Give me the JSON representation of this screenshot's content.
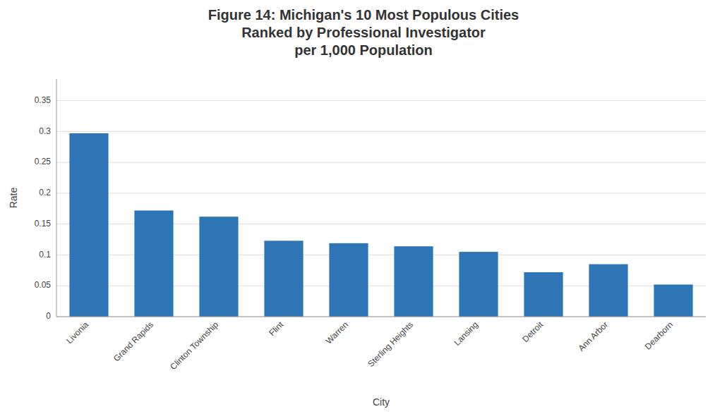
{
  "chart_data": {
    "type": "bar",
    "title": "Figure 14: Michigan's 10 Most Populous Cities\nRanked by Professional Investigator\nper 1,000 Population",
    "xlabel": "City",
    "ylabel": "Rate",
    "categories": [
      "Livonia",
      "Grand Rapids",
      "Clinton Township",
      "Flint",
      "Warren",
      "Sterling Heights",
      "Lansing",
      "Detroit",
      "Ann Arbor",
      "Dearborn"
    ],
    "values": [
      0.297,
      0.172,
      0.162,
      0.123,
      0.119,
      0.114,
      0.105,
      0.072,
      0.085,
      0.052
    ],
    "color": "#2E75B6",
    "ylim": [
      0,
      0.385
    ],
    "yticks": [
      0,
      0.05,
      0.1,
      0.15,
      0.2,
      0.25,
      0.3,
      0.35
    ],
    "grid": true
  }
}
